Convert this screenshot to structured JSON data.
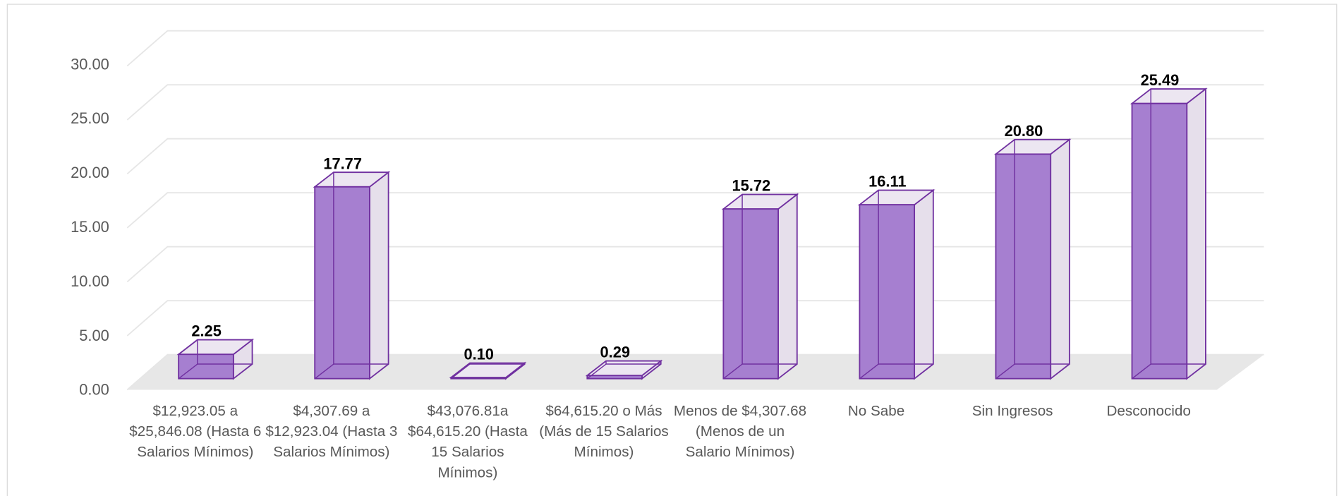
{
  "chart_data": {
    "type": "bar3d",
    "categories": [
      "$12,923.05 a $25,846.08 (Hasta 6 Salarios Mínimos)",
      "$4,307.69 a $12,923.04 (Hasta 3 Salarios Mínimos)",
      "$43,076.81a $64,615.20 (Hasta 15 Salarios Mínimos)",
      "$64,615.20 o Más (Más de 15 Salarios Mínimos)",
      "Menos de $4,307.68 (Menos de un Salario Mínimos)",
      "No Sabe",
      "Sin Ingresos",
      "Desconocido"
    ],
    "values": [
      2.25,
      17.77,
      0.1,
      0.29,
      15.72,
      16.11,
      20.8,
      25.49
    ],
    "value_labels": [
      "2.25",
      "17.77",
      "0.10",
      "0.29",
      "15.72",
      "16.11",
      "20.80",
      "25.49"
    ],
    "color": "#a67fd0",
    "ylim": [
      0,
      30
    ],
    "yticks": [
      {
        "value": 0,
        "label": "0.00"
      },
      {
        "value": 5,
        "label": "5.00"
      },
      {
        "value": 10,
        "label": "10.00"
      },
      {
        "value": 15,
        "label": "15.00"
      },
      {
        "value": 20,
        "label": "20.00"
      },
      {
        "value": 25,
        "label": "25.00"
      },
      {
        "value": 30,
        "label": "30.00"
      }
    ],
    "grid": true
  }
}
